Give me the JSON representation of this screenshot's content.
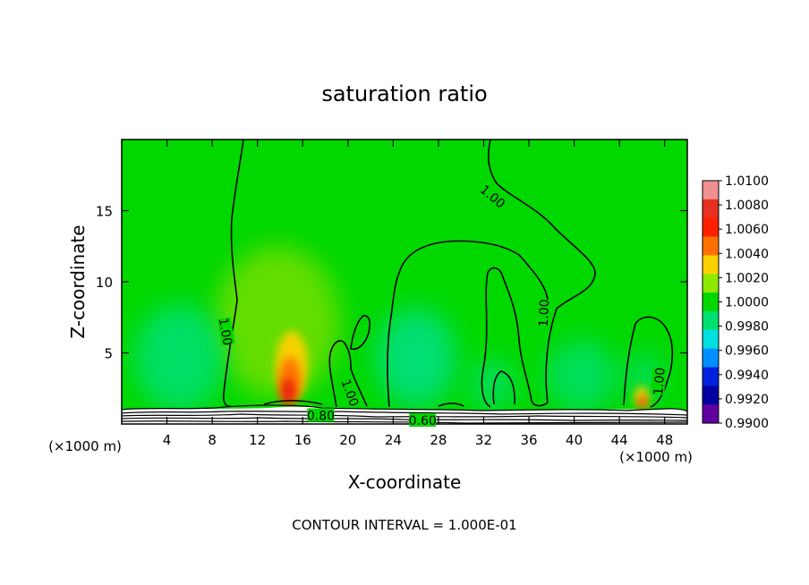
{
  "chart_data": {
    "type": "heatmap",
    "title": "saturation ratio",
    "xlabel": "X-coordinate",
    "ylabel": "Z-coordinate",
    "x_unit_left": "(×1000 m)",
    "x_unit_right": "(×1000 m)",
    "footer": "CONTOUR INTERVAL = 1.000E-01",
    "xlim": [
      0,
      50
    ],
    "ylim": [
      0,
      20
    ],
    "x_ticks": [
      4,
      8,
      12,
      16,
      20,
      24,
      28,
      32,
      36,
      40,
      44,
      48
    ],
    "y_ticks": [
      5,
      10,
      15
    ],
    "grid": false,
    "field_base_value": 1.0,
    "colorbar": {
      "labels": [
        "1.0100",
        "1.0080",
        "1.0060",
        "1.0040",
        "1.0020",
        "1.0000",
        "0.9980",
        "0.9960",
        "0.9940",
        "0.9920",
        "0.9900"
      ],
      "colors": [
        "#f09090",
        "#e83020",
        "#ff2000",
        "#ff7000",
        "#ffd000",
        "#90e800",
        "#00d800",
        "#00e070",
        "#00e0e0",
        "#0090ff",
        "#0020e0",
        "#0000a0",
        "#6000a0"
      ]
    },
    "contour_labels": [
      {
        "text": "1.00",
        "x": 9.2,
        "z": 6.5,
        "rot": 80
      },
      {
        "text": "1.00",
        "x": 32.8,
        "z": 16.0,
        "rot": 40
      },
      {
        "text": "1.00",
        "x": 37.3,
        "z": 7.8,
        "rot": -88
      },
      {
        "text": "1.00",
        "x": 20.2,
        "z": 2.2,
        "rot": 70
      },
      {
        "text": "1.00",
        "x": 47.5,
        "z": 3.0,
        "rot": -85
      },
      {
        "text": "0.80",
        "x": 17.6,
        "z": 0.6,
        "rot": 0
      },
      {
        "text": "0.60",
        "x": 26.6,
        "z": 0.25,
        "rot": 0
      }
    ]
  }
}
